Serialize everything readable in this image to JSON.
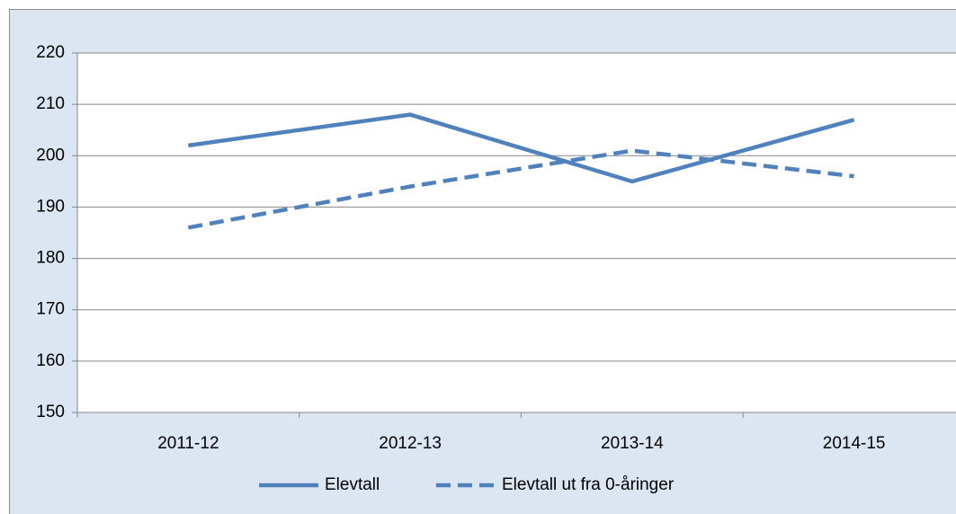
{
  "chart_data": {
    "type": "line",
    "categories": [
      "2011-12",
      "2012-13",
      "2013-14",
      "2014-15"
    ],
    "series": [
      {
        "name": "Elevtall",
        "color": "#4f81bd",
        "dash": false,
        "values": [
          202,
          208,
          195,
          207
        ]
      },
      {
        "name": "Elevtall ut fra 0-åringer",
        "color": "#4f81bd",
        "dash": true,
        "values": [
          186,
          194,
          201,
          196
        ]
      }
    ],
    "ylim": [
      150,
      220
    ],
    "yticks": [
      150,
      160,
      170,
      180,
      190,
      200,
      210,
      220
    ],
    "grid": true,
    "legend": "bottom"
  }
}
